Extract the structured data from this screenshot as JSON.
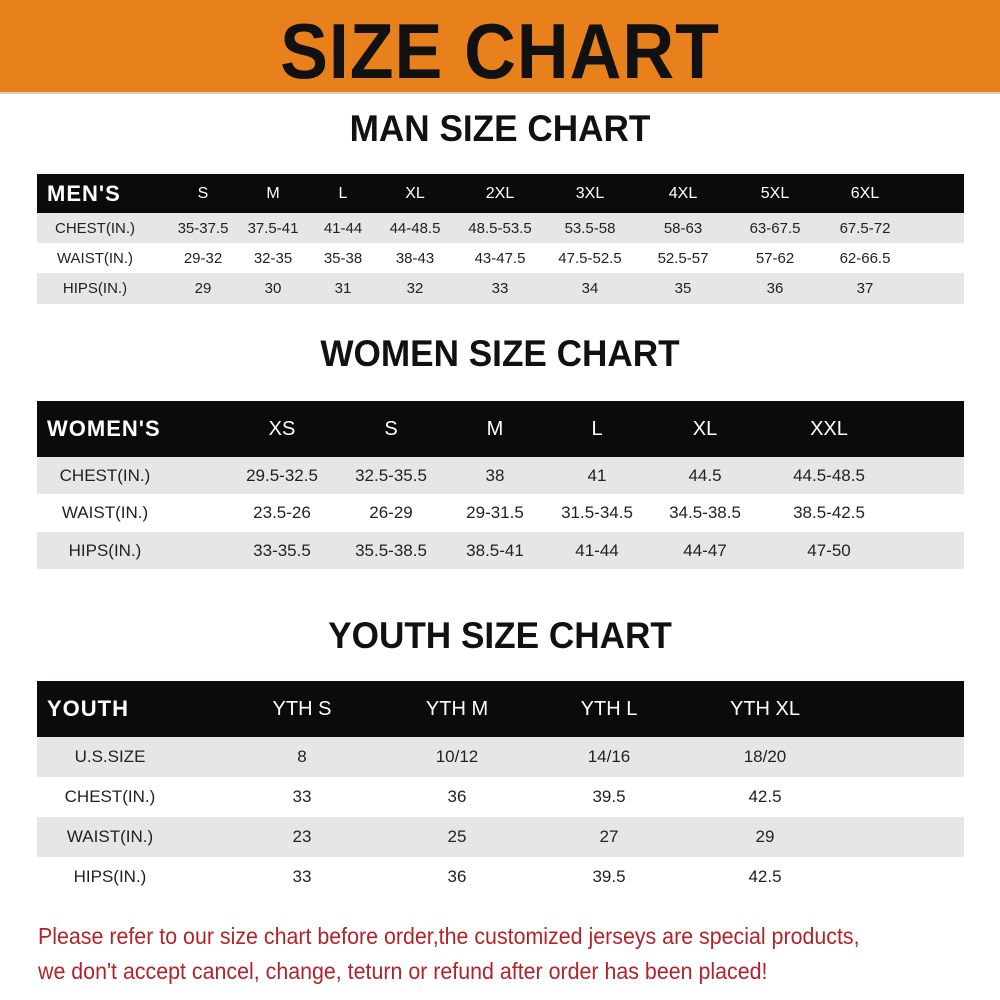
{
  "header": {
    "title": "SIZE CHART",
    "color": "#e8801c"
  },
  "men": {
    "title": "MAN SIZE CHART",
    "columns": [
      "MEN'S",
      "S",
      "M",
      "L",
      "XL",
      "2XL",
      "3XL",
      "4XL",
      "5XL",
      "6XL"
    ],
    "rows": [
      [
        "CHEST(IN.)",
        "35-37.5",
        "37.5-41",
        "41-44",
        "44-48.5",
        "48.5-53.5",
        "53.5-58",
        "58-63",
        "63-67.5",
        "67.5-72"
      ],
      [
        "WAIST(IN.)",
        "29-32",
        "32-35",
        "35-38",
        "38-43",
        "43-47.5",
        "47.5-52.5",
        "52.5-57",
        "57-62",
        "62-66.5"
      ],
      [
        "HIPS(IN.)",
        "29",
        "30",
        "31",
        "32",
        "33",
        "34",
        "35",
        "36",
        "37"
      ]
    ]
  },
  "women": {
    "title": "WOMEN SIZE CHART",
    "columns": [
      "WOMEN'S",
      "XS",
      "S",
      "M",
      "L",
      "XL",
      "XXL"
    ],
    "rows": [
      [
        "CHEST(IN.)",
        "29.5-32.5",
        "32.5-35.5",
        "38",
        "41",
        "44.5",
        "44.5-48.5"
      ],
      [
        "WAIST(IN.)",
        "23.5-26",
        "26-29",
        "29-31.5",
        "31.5-34.5",
        "34.5-38.5",
        "38.5-42.5"
      ],
      [
        "HIPS(IN.)",
        "33-35.5",
        "35.5-38.5",
        "38.5-41",
        "41-44",
        "44-47",
        "47-50"
      ]
    ]
  },
  "youth": {
    "title": "YOUTH SIZE CHART",
    "columns": [
      "YOUTH",
      "YTH S",
      "YTH M",
      "YTH L",
      "YTH XL"
    ],
    "rows": [
      [
        "U.S.SIZE",
        "8",
        "10/12",
        "14/16",
        "18/20"
      ],
      [
        "CHEST(IN.)",
        "33",
        "36",
        "39.5",
        "42.5"
      ],
      [
        "WAIST(IN.)",
        "23",
        "25",
        "27",
        "29"
      ],
      [
        "HIPS(IN.)",
        "33",
        "36",
        "39.5",
        "42.5"
      ]
    ]
  },
  "notice": {
    "line1": "Please refer to our size chart before order,the customized jerseys are special products,",
    "line2": "we don't accept cancel, change, teturn or refund after order has been placed!",
    "color": "#b3242a"
  }
}
